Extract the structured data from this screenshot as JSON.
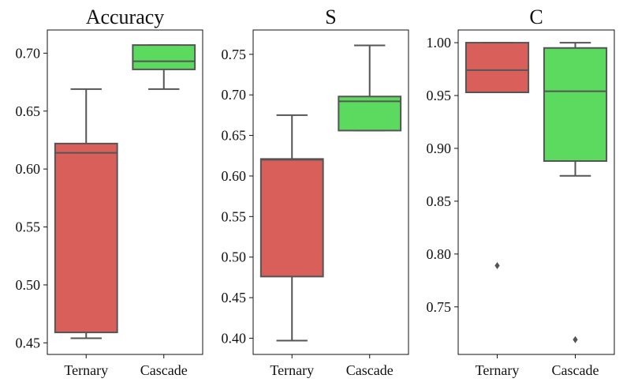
{
  "chart_data": [
    {
      "type": "box",
      "title": "Accuracy",
      "xlabel": "",
      "ylabel": "",
      "ylim": [
        0.44,
        0.72
      ],
      "yticks": [
        0.45,
        0.5,
        0.55,
        0.6,
        0.65,
        0.7
      ],
      "ytick_labels": [
        "0.45",
        "0.50",
        "0.55",
        "0.60",
        "0.65",
        "0.70"
      ],
      "categories": [
        "Ternary",
        "Cascade"
      ],
      "boxes": [
        {
          "category": "Ternary",
          "color": "#d9605a",
          "whisker_low": 0.454,
          "q1": 0.459,
          "median": 0.614,
          "q3": 0.622,
          "whisker_high": 0.669,
          "outliers": []
        },
        {
          "category": "Cascade",
          "color": "#5cd95f",
          "whisker_low": 0.669,
          "q1": 0.686,
          "median": 0.693,
          "q3": 0.707,
          "whisker_high": 0.707,
          "outliers": []
        }
      ]
    },
    {
      "type": "box",
      "title": "S",
      "xlabel": "",
      "ylabel": "",
      "ylim": [
        0.38,
        0.78
      ],
      "yticks": [
        0.4,
        0.45,
        0.5,
        0.55,
        0.6,
        0.65,
        0.7,
        0.75
      ],
      "ytick_labels": [
        "0.40",
        "0.45",
        "0.50",
        "0.55",
        "0.60",
        "0.65",
        "0.70",
        "0.75"
      ],
      "categories": [
        "Ternary",
        "Cascade"
      ],
      "boxes": [
        {
          "category": "Ternary",
          "color": "#d9605a",
          "whisker_low": 0.397,
          "q1": 0.476,
          "median": 0.62,
          "q3": 0.621,
          "whisker_high": 0.675,
          "outliers": []
        },
        {
          "category": "Cascade",
          "color": "#5cd95f",
          "whisker_low": 0.656,
          "q1": 0.656,
          "median": 0.692,
          "q3": 0.698,
          "whisker_high": 0.761,
          "outliers": []
        }
      ]
    },
    {
      "type": "box",
      "title": "C",
      "xlabel": "",
      "ylabel": "",
      "ylim": [
        0.705,
        1.012
      ],
      "yticks": [
        0.75,
        0.8,
        0.85,
        0.9,
        0.95,
        1.0
      ],
      "ytick_labels": [
        "0.75",
        "0.80",
        "0.85",
        "0.90",
        "0.95",
        "1.00"
      ],
      "categories": [
        "Ternary",
        "Cascade"
      ],
      "boxes": [
        {
          "category": "Ternary",
          "color": "#d9605a",
          "whisker_low": 0.953,
          "q1": 0.953,
          "median": 0.974,
          "q3": 1.0,
          "whisker_high": 1.0,
          "outliers": [
            0.789
          ]
        },
        {
          "category": "Cascade",
          "color": "#5cd95f",
          "whisker_low": 0.874,
          "q1": 0.888,
          "median": 0.954,
          "q3": 0.995,
          "whisker_high": 1.0,
          "outliers": [
            0.719
          ]
        }
      ]
    }
  ]
}
